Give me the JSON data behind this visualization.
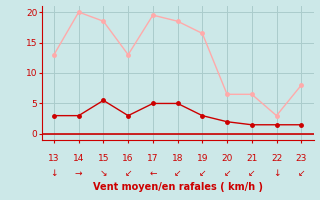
{
  "x": [
    13,
    14,
    15,
    16,
    17,
    18,
    19,
    20,
    21,
    22,
    23
  ],
  "wind_avg": [
    3,
    3,
    5.5,
    3,
    5,
    5,
    3,
    2,
    1.5,
    1.5,
    1.5
  ],
  "wind_gust": [
    13,
    20,
    18.5,
    13,
    19.5,
    18.5,
    16.5,
    6.5,
    6.5,
    3,
    8
  ],
  "avg_color": "#cc0000",
  "gust_color": "#ffaaaa",
  "bg_color": "#cce8e8",
  "grid_color": "#aacccc",
  "xlabel": "Vent moyen/en rafales ( km/h )",
  "xlabel_color": "#cc0000",
  "ylim": [
    -1,
    21
  ],
  "yticks": [
    0,
    5,
    10,
    15,
    20
  ],
  "xticks": [
    13,
    14,
    15,
    16,
    17,
    18,
    19,
    20,
    21,
    22,
    23
  ],
  "tick_color": "#cc0000",
  "spine_color": "#cc0000",
  "line_width": 1.0,
  "marker_size": 2.5,
  "arrows": [
    "↓",
    "→",
    "↘",
    "↙",
    "←",
    "↙",
    "↙",
    "↙",
    "↙",
    "↓",
    "↙"
  ]
}
